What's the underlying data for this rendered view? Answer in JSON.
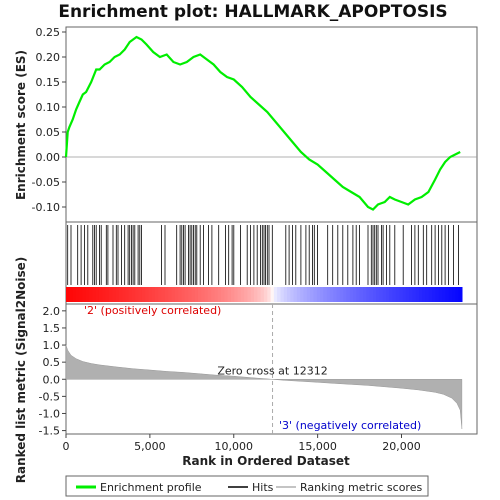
{
  "chart_data": {
    "type": "line",
    "title": "Enrichment plot: HALLMARK_APOPTOSIS",
    "xlabel": "Rank in Ordered Dataset",
    "ylabel_top": "Enrichment score (ES)",
    "ylabel_bottom": "Ranked list metric (Signal2Noise)",
    "xlim": [
      0,
      24500
    ],
    "x_ticks": [
      0,
      5000,
      10000,
      15000,
      20000
    ],
    "x_tick_labels": [
      "0",
      "5,000",
      "10,000",
      "15,000",
      "20,000"
    ],
    "es_ylim": [
      -0.13,
      0.26
    ],
    "es_ticks": [
      0.25,
      0.2,
      0.15,
      0.1,
      0.05,
      0.0,
      -0.05,
      -0.1
    ],
    "es_tick_labels": [
      "0.25",
      "0.20",
      "0.15",
      "0.10",
      "0.05",
      "0.00",
      "-0.05",
      "-0.10"
    ],
    "metric_ylim": [
      -1.6,
      2.2
    ],
    "metric_ticks": [
      2.0,
      1.5,
      1.0,
      0.5,
      0.0,
      -0.5,
      -1.0,
      -1.5
    ],
    "metric_tick_labels": [
      "2.0",
      "1.5",
      "1.0",
      "0.5",
      "0.0",
      "-0.5",
      "-1.0",
      "-1.5"
    ],
    "zero_cross_rank": 12312,
    "zero_cross_label": "Zero cross at 12312",
    "positive_label": "'2' (positively correlated)",
    "negative_label": "'3' (negatively correlated)",
    "enrichment_profile": {
      "x": [
        0,
        100,
        200,
        400,
        600,
        800,
        1000,
        1200,
        1500,
        1800,
        2000,
        2300,
        2600,
        2900,
        3200,
        3500,
        3800,
        4200,
        4500,
        4800,
        5200,
        5600,
        6000,
        6400,
        6800,
        7200,
        7600,
        8000,
        8400,
        8800,
        9200,
        9600,
        10000,
        10500,
        11000,
        11500,
        12000,
        12500,
        13000,
        13500,
        14000,
        14500,
        15000,
        15500,
        16000,
        16500,
        17000,
        17500,
        18000,
        18300,
        18600,
        19000,
        19300,
        19600,
        20000,
        20400,
        20800,
        21200,
        21600,
        22000,
        22300,
        22600,
        22900,
        23200,
        23500
      ],
      "y": [
        0.0,
        0.05,
        0.06,
        0.075,
        0.095,
        0.11,
        0.125,
        0.13,
        0.15,
        0.175,
        0.175,
        0.185,
        0.19,
        0.2,
        0.205,
        0.215,
        0.23,
        0.24,
        0.235,
        0.225,
        0.21,
        0.2,
        0.205,
        0.19,
        0.185,
        0.19,
        0.2,
        0.205,
        0.195,
        0.185,
        0.17,
        0.16,
        0.155,
        0.14,
        0.12,
        0.105,
        0.09,
        0.07,
        0.05,
        0.03,
        0.01,
        -0.005,
        -0.015,
        -0.03,
        -0.045,
        -0.06,
        -0.07,
        -0.08,
        -0.1,
        -0.105,
        -0.095,
        -0.09,
        -0.08,
        -0.085,
        -0.09,
        -0.095,
        -0.085,
        -0.08,
        -0.07,
        -0.045,
        -0.025,
        -0.01,
        0.0,
        0.005,
        0.01
      ]
    },
    "metric": {
      "x": [
        0,
        100,
        300,
        600,
        1000,
        1500,
        2000,
        3000,
        4000,
        5000,
        6000,
        7000,
        8000,
        9000,
        10000,
        11000,
        12312,
        13000,
        14000,
        15000,
        16000,
        17000,
        18000,
        19000,
        20000,
        21000,
        22000,
        22500,
        23000,
        23300,
        23500,
        23600
      ],
      "y": [
        1.0,
        0.85,
        0.7,
        0.6,
        0.52,
        0.46,
        0.42,
        0.36,
        0.31,
        0.27,
        0.23,
        0.2,
        0.16,
        0.12,
        0.09,
        0.05,
        0.0,
        -0.03,
        -0.06,
        -0.09,
        -0.12,
        -0.15,
        -0.18,
        -0.22,
        -0.26,
        -0.31,
        -0.38,
        -0.44,
        -0.55,
        -0.7,
        -0.9,
        -1.45
      ]
    },
    "hits": [
      100,
      300,
      700,
      900,
      1100,
      1300,
      1600,
      1700,
      1800,
      2000,
      2100,
      2400,
      2500,
      2800,
      3000,
      3100,
      3300,
      3500,
      3700,
      3800,
      3900,
      4000,
      4100,
      4300,
      4400,
      4500,
      5700,
      5900,
      6600,
      6800,
      6900,
      7000,
      7100,
      7300,
      7400,
      7500,
      7600,
      7700,
      7800,
      8000,
      8200,
      8500,
      8700,
      9100,
      9500,
      9700,
      9900,
      10000,
      10400,
      10800,
      11000,
      11200,
      11400,
      11600,
      11700,
      11800,
      11900,
      12000,
      12100,
      12300,
      13100,
      13300,
      13500,
      13700,
      14000,
      14300,
      14500,
      14700,
      14800,
      15000,
      15600,
      15900,
      16200,
      16500,
      16800,
      17100,
      17300,
      17500,
      18000,
      18200,
      18300,
      18400,
      18500,
      18600,
      18800,
      18900,
      19100,
      19300,
      19600,
      20100,
      20600,
      20800,
      21000,
      21300,
      21500,
      21800,
      22000,
      22200,
      22400,
      22600,
      22800,
      23100,
      23400
    ],
    "legend": [
      "Enrichment profile",
      "Hits",
      "Ranking metric scores"
    ],
    "colors": {
      "profile": "#00ee00",
      "hit": "#000000",
      "metric_fill": "#b0b0b0",
      "pos": "#ff0000",
      "neg": "#0000ff"
    }
  }
}
